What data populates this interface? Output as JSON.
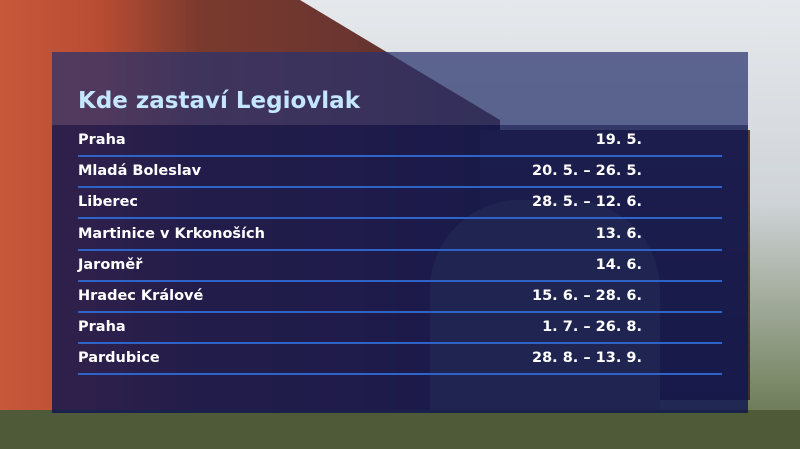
{
  "title": "Kde zastaví Legiovlak",
  "stops": [
    {
      "city": "Praha",
      "dates": "19. 5."
    },
    {
      "city": "Mladá Boleslav",
      "dates": "20. 5. – 26. 5."
    },
    {
      "city": "Liberec",
      "dates": "28. 5. – 12. 6."
    },
    {
      "city": "Martinice v Krkonoších",
      "dates": "13. 6."
    },
    {
      "city": "Jaroměř",
      "dates": "14. 6."
    },
    {
      "city": "Hradec Králové",
      "dates": "15. 6. – 28. 6."
    },
    {
      "city": "Praha",
      "dates": "1. 7. – 26. 8."
    },
    {
      "city": "Pardubice",
      "dates": "28. 8. – 13. 9."
    }
  ],
  "colors": {
    "title": "#c4e6ff",
    "divider": "#2e64c8",
    "panel": "#0f1650"
  }
}
